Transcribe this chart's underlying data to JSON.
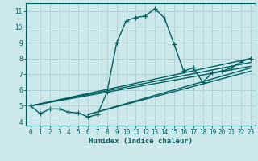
{
  "xlabel": "Humidex (Indice chaleur)",
  "background_color": "#cce8ea",
  "grid_color": "#aacfd4",
  "line_color": "#006060",
  "xlim": [
    -0.5,
    23.5
  ],
  "ylim": [
    3.75,
    11.5
  ],
  "xticks": [
    0,
    1,
    2,
    3,
    4,
    5,
    6,
    7,
    8,
    9,
    10,
    11,
    12,
    13,
    14,
    15,
    16,
    17,
    18,
    19,
    20,
    21,
    22,
    23
  ],
  "yticks": [
    4,
    5,
    6,
    7,
    8,
    9,
    10,
    11
  ],
  "series": [
    [
      0,
      5.0
    ],
    [
      1,
      4.5
    ],
    [
      2,
      4.8
    ],
    [
      3,
      4.8
    ],
    [
      4,
      4.6
    ],
    [
      5,
      4.55
    ],
    [
      6,
      4.3
    ],
    [
      7,
      4.45
    ],
    [
      8,
      5.9
    ],
    [
      9,
      9.0
    ],
    [
      10,
      10.4
    ],
    [
      11,
      10.6
    ],
    [
      12,
      10.7
    ],
    [
      13,
      11.15
    ],
    [
      14,
      10.55
    ],
    [
      15,
      8.9
    ],
    [
      16,
      7.2
    ],
    [
      17,
      7.4
    ],
    [
      18,
      6.5
    ],
    [
      19,
      7.1
    ],
    [
      20,
      7.2
    ],
    [
      21,
      7.4
    ],
    [
      22,
      7.8
    ],
    [
      23,
      8.0
    ]
  ],
  "extra_lines": [
    {
      "x": [
        0,
        23
      ],
      "y": [
        5.0,
        7.5
      ]
    },
    {
      "x": [
        0,
        23
      ],
      "y": [
        5.0,
        7.75
      ]
    },
    {
      "x": [
        0,
        23
      ],
      "y": [
        5.0,
        8.0
      ]
    },
    {
      "x": [
        6,
        23
      ],
      "y": [
        4.45,
        7.2
      ]
    },
    {
      "x": [
        6,
        23
      ],
      "y": [
        4.45,
        7.4
      ]
    }
  ],
  "marker": "+",
  "markersize": 4,
  "linewidth": 1.0,
  "tick_fontsize": 5.5,
  "xlabel_fontsize": 6.5
}
